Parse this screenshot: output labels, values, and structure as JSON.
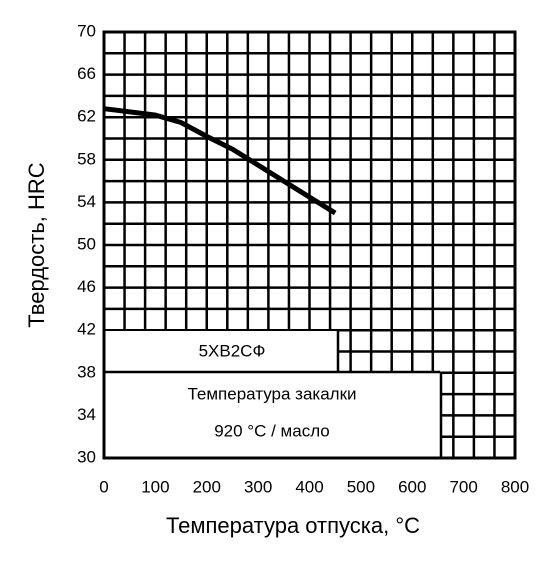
{
  "chart_data": {
    "type": "line",
    "x_label": "Температура отпуска, °С",
    "y_label": "Твердость, HRC",
    "annotations": [
      "5ХВ2СФ",
      "Температура закалки",
      "920 °С / масло"
    ],
    "series": [
      {
        "color": "#000000",
        "x": [
          0,
          50,
          100,
          150,
          200,
          250,
          300,
          350,
          400,
          450
        ],
        "values": [
          62.8,
          62.5,
          62.2,
          61.5,
          60.2,
          59,
          57.5,
          56,
          54.5,
          53
        ]
      }
    ],
    "xlim": [
      0,
      800
    ],
    "ylim": [
      30,
      70
    ],
    "xticks": [
      0,
      100,
      200,
      300,
      400,
      500,
      600,
      700,
      800
    ],
    "yticks": [
      30,
      34,
      38,
      42,
      46,
      50,
      54,
      58,
      62,
      66,
      70
    ],
    "xgrid": [
      0,
      40,
      80,
      120,
      160,
      200,
      240,
      280,
      320,
      360,
      400,
      440,
      480,
      520,
      560,
      600,
      640,
      680,
      720,
      760,
      800
    ],
    "ygrid": [
      30,
      32,
      34,
      36,
      38,
      40,
      42,
      44,
      46,
      48,
      50,
      52,
      54,
      56,
      58,
      60,
      62,
      64,
      66,
      68,
      70
    ],
    "grid": true
  }
}
